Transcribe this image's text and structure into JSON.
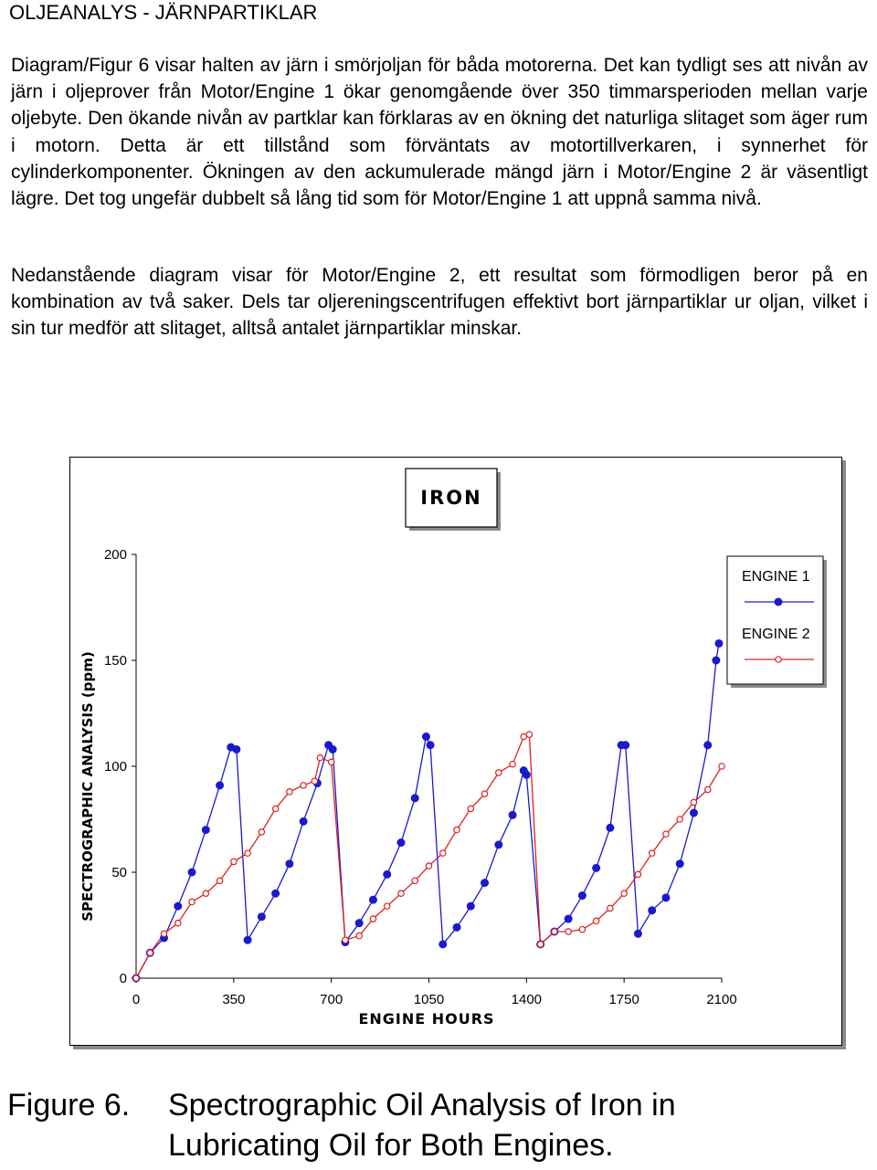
{
  "page": {
    "heading": "OLJEANALYS - JÄRNPARTIKLAR",
    "paragraph1": "Diagram/Figur 6 visar halten av järn i smörjoljan för båda motorerna. Det kan tydligt ses att nivån av järn i oljeprover från Motor/Engine 1 ökar genomgående över 350 timmarsperioden mellan varje oljebyte. Den ökande nivån av partklar kan förklaras av en ökning det naturliga slitaget som äger rum i motorn. Detta är ett tillstånd som förväntats av motortillverkaren, i synnerhet för cylinderkomponenter. Ökningen av den ackumulerade mängd järn i Motor/Engine 2 är väsentligt lägre. Det tog ungefär dubbelt så lång tid som för Motor/Engine 1 att uppnå samma nivå.",
    "paragraph2": "Nedanstående diagram visar för Motor/Engine 2, ett resultat som förmodligen beror på en kombination av två saker. Dels tar oljereningscentrifugen effektivt bort järnpartiklar ur oljan, vilket i sin tur medför att slitaget, alltså antalet järnpartiklar minskar.",
    "caption_label": "Figure 6.",
    "caption_text": "Spectrographic Oil Analysis of Iron in Lubricating Oil for Both Engines."
  },
  "chart_data": {
    "type": "line",
    "title": "IRON",
    "xlabel": "ENGINE HOURS",
    "ylabel": "SPECTROGRAPHIC ANALYSIS (ppm)",
    "xlim": [
      0,
      2100
    ],
    "ylim": [
      0,
      200
    ],
    "xticks": [
      0,
      350,
      700,
      1050,
      1400,
      1750,
      2100
    ],
    "yticks": [
      0,
      50,
      100,
      150,
      200
    ],
    "grid": false,
    "legend_position": "top-right",
    "series": [
      {
        "name": "ENGINE 1",
        "color": "#1a1acc",
        "marker": "filled-circle",
        "x": [
          0,
          50,
          100,
          150,
          200,
          250,
          300,
          340,
          360,
          400,
          450,
          500,
          550,
          600,
          650,
          690,
          705,
          750,
          800,
          850,
          900,
          950,
          1000,
          1040,
          1055,
          1100,
          1150,
          1200,
          1250,
          1300,
          1350,
          1390,
          1400,
          1450,
          1500,
          1550,
          1600,
          1650,
          1700,
          1740,
          1755,
          1800,
          1850,
          1900,
          1950,
          2000,
          2050,
          2080,
          2090
        ],
        "y": [
          0,
          12,
          19,
          34,
          50,
          70,
          91,
          109,
          108,
          18,
          29,
          40,
          54,
          74,
          92,
          110,
          108,
          17,
          26,
          37,
          49,
          64,
          85,
          114,
          110,
          16,
          24,
          34,
          45,
          63,
          77,
          98,
          96,
          16,
          22,
          28,
          39,
          52,
          71,
          110,
          110,
          21,
          32,
          38,
          54,
          78,
          110,
          150,
          158
        ]
      },
      {
        "name": "ENGINE 2",
        "color": "#dd2222",
        "marker": "open-circle",
        "x": [
          0,
          50,
          100,
          150,
          200,
          250,
          300,
          350,
          400,
          450,
          500,
          550,
          600,
          640,
          660,
          700,
          750,
          800,
          850,
          900,
          950,
          1000,
          1050,
          1100,
          1150,
          1200,
          1250,
          1300,
          1350,
          1390,
          1410,
          1450,
          1500,
          1550,
          1600,
          1650,
          1700,
          1750,
          1800,
          1850,
          1900,
          1950,
          2000,
          2050,
          2100
        ],
        "y": [
          0,
          12,
          21,
          26,
          36,
          40,
          46,
          55,
          59,
          69,
          80,
          88,
          91,
          93,
          104,
          102,
          18,
          20,
          28,
          34,
          40,
          46,
          53,
          59,
          70,
          80,
          87,
          97,
          101,
          114,
          115,
          16,
          22,
          22,
          23,
          27,
          33,
          40,
          49,
          59,
          68,
          75,
          83,
          89,
          100
        ]
      }
    ]
  }
}
